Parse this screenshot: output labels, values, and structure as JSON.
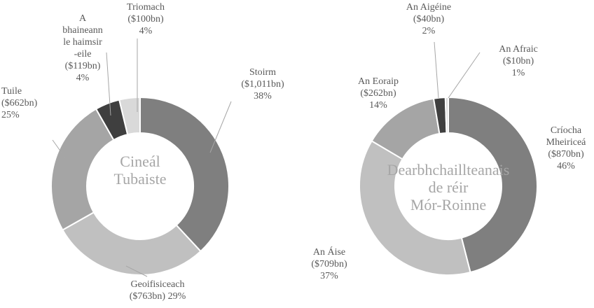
{
  "chart_data": [
    {
      "type": "donut",
      "title": [
        "Cineál",
        "Tubaiste"
      ],
      "categories": [
        "Stoirm",
        "Geoifisiceach",
        "Tuile",
        "A bhaineann le haimsir -eile",
        "Triomach"
      ],
      "values": [
        1011,
        763,
        662,
        119,
        100
      ],
      "value_labels": [
        "($1,011bn)",
        "($763bn)",
        "($662bn)",
        "($119bn)",
        "($100bn)"
      ],
      "shares": [
        38,
        29,
        25,
        4,
        4
      ],
      "share_labels": [
        "38%",
        "29%",
        "25%",
        "4%",
        "4%"
      ],
      "colors": [
        "#7f7f7f",
        "#c0c0c0",
        "#a5a5a5",
        "#3f3f3f",
        "#d9d9d9"
      ]
    },
    {
      "type": "donut",
      "title": [
        "Dearbhchaillteanais",
        "de réir",
        "Mór-Roinne"
      ],
      "categories": [
        "Críocha Mheiriceá",
        "An Áise",
        "An Eoraip",
        "An Aigéine",
        "An Afraic"
      ],
      "values": [
        870,
        709,
        262,
        40,
        10
      ],
      "value_labels": [
        "($870bn)",
        "($709bn)",
        "($262bn)",
        "($40bn)",
        "($10bn)"
      ],
      "shares": [
        46,
        37,
        14,
        2,
        1
      ],
      "share_labels": [
        "46%",
        "37%",
        "14%",
        "2%",
        "1%"
      ],
      "colors": [
        "#7f7f7f",
        "#c0c0c0",
        "#a5a5a5",
        "#3f3f3f",
        "#d9d9d9"
      ]
    }
  ]
}
